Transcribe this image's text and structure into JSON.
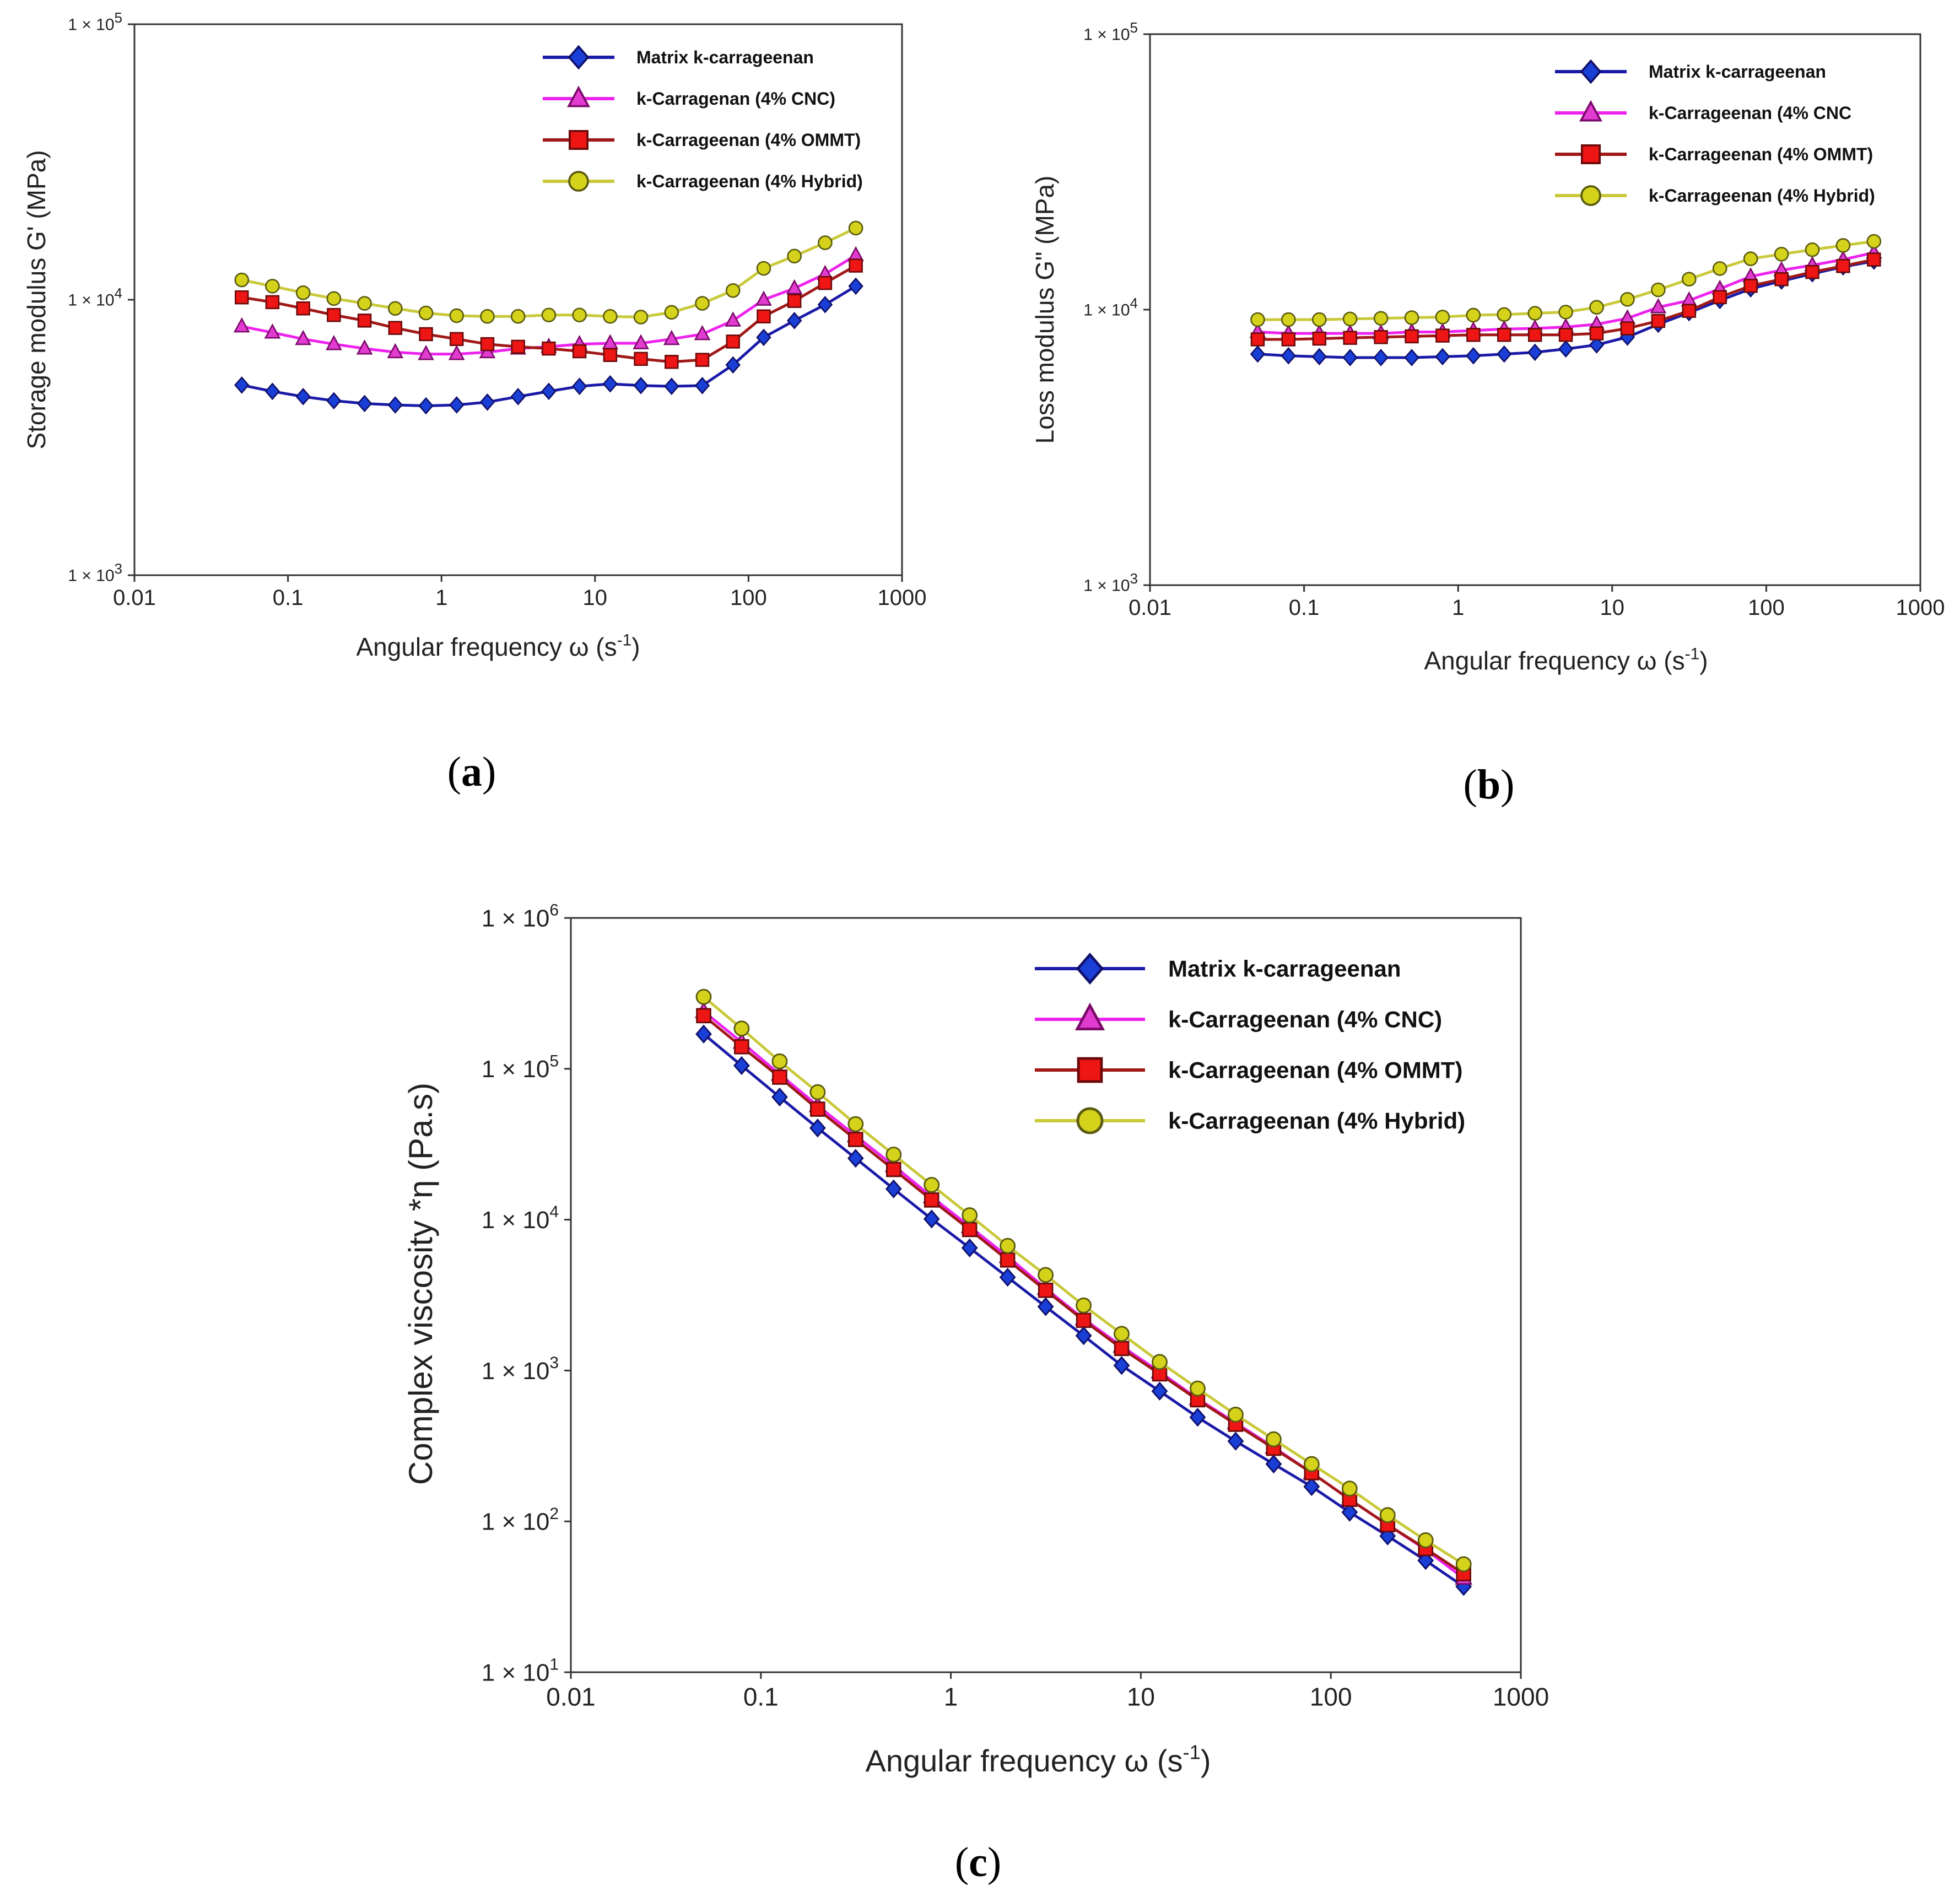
{
  "series_styles": [
    {
      "key": "matrix",
      "marker": "diamond",
      "line_color": "#1a1aa8",
      "fill": "#1a3fd6",
      "stroke": "#10106a"
    },
    {
      "key": "cnc",
      "marker": "triangle",
      "line_color": "#ee22ee",
      "fill": "#e23bd0",
      "stroke": "#7a0a6a"
    },
    {
      "key": "ommt",
      "marker": "square",
      "line_color": "#a01818",
      "fill": "#ee1515",
      "stroke": "#6a0a0a"
    },
    {
      "key": "hybrid",
      "marker": "circle",
      "line_color": "#c9c93a",
      "fill": "#d4d21a",
      "stroke": "#5a5a10"
    }
  ],
  "chart_data": [
    {
      "id": "a",
      "panel_label": "a",
      "type": "line",
      "xscale": "log",
      "yscale": "log",
      "xlim": [
        0.01,
        1000
      ],
      "ylim": [
        1000,
        100000
      ],
      "xticks": [
        "0.01",
        "0.1",
        "1",
        "10",
        "100",
        "1000"
      ],
      "yticks": [
        {
          "value": 1000,
          "mant": "1 × 10",
          "exp": "3"
        },
        {
          "value": 10000,
          "mant": "1 × 10",
          "exp": "4"
        },
        {
          "value": 100000,
          "mant": "1 × 10",
          "exp": "5"
        }
      ],
      "xlabel": "Angular frequency ω (s",
      "xlabel_sup": "-1",
      "xlabel_end": ")",
      "ylabel": "Storage modulus G' (MPa)",
      "legend_position": "top-right",
      "x": [
        0.05,
        0.0792,
        0.1256,
        0.199,
        0.3154,
        0.4999,
        0.7923,
        1.2557,
        1.9902,
        3.1543,
        4.9993,
        7.9234,
        12.558,
        19.903,
        31.544,
        49.994,
        79.235,
        125.58,
        199.03,
        315.44,
        499.94
      ],
      "series": [
        {
          "name": "Matrix k-carrageenan",
          "values": [
            4900,
            4650,
            4450,
            4300,
            4200,
            4150,
            4120,
            4150,
            4250,
            4450,
            4650,
            4850,
            4950,
            4880,
            4850,
            4880,
            5800,
            7300,
            8400,
            9600,
            11200
          ]
        },
        {
          "name": "k-Carragenan (4% CNC)",
          "values": [
            8000,
            7600,
            7200,
            6900,
            6650,
            6450,
            6350,
            6350,
            6450,
            6650,
            6750,
            6900,
            6950,
            6950,
            7200,
            7500,
            8400,
            10000,
            11000,
            12400,
            14500
          ]
        },
        {
          "name": "k-Carrageenan (4% OMMT)",
          "values": [
            10200,
            9800,
            9300,
            8800,
            8400,
            7900,
            7500,
            7200,
            6900,
            6750,
            6650,
            6500,
            6300,
            6100,
            5950,
            6050,
            7050,
            8700,
            9900,
            11500,
            13300
          ]
        },
        {
          "name": "k-Carrageenan (4% Hybrid)",
          "values": [
            11800,
            11200,
            10600,
            10100,
            9700,
            9300,
            8950,
            8750,
            8700,
            8700,
            8800,
            8800,
            8700,
            8650,
            9000,
            9700,
            10800,
            13000,
            14400,
            16100,
            18200
          ]
        }
      ]
    },
    {
      "id": "b",
      "panel_label": "b",
      "type": "line",
      "xscale": "log",
      "yscale": "log",
      "xlim": [
        0.01,
        1000
      ],
      "ylim": [
        1000,
        100000
      ],
      "xticks": [
        "0.01",
        "0.1",
        "1",
        "10",
        "100",
        "1000"
      ],
      "yticks": [
        {
          "value": 1000,
          "mant": "1 × 10",
          "exp": "3"
        },
        {
          "value": 10000,
          "mant": "1 × 10",
          "exp": "4"
        },
        {
          "value": 100000,
          "mant": "1 × 10",
          "exp": "5"
        }
      ],
      "xlabel": "Angular frequency ω (s",
      "xlabel_sup": "-1",
      "xlabel_end": ")",
      "ylabel": "Loss modulus G\" (MPa)",
      "legend_position": "top-right",
      "x": [
        0.05,
        0.0792,
        0.1256,
        0.199,
        0.3154,
        0.4999,
        0.7923,
        1.2557,
        1.9902,
        3.1543,
        4.9993,
        7.9234,
        12.558,
        19.903,
        31.544,
        49.994,
        79.235,
        125.58,
        199.03,
        315.44,
        499.94
      ],
      "series": [
        {
          "name": "Matrix k-carrageenan",
          "values": [
            6900,
            6800,
            6750,
            6700,
            6700,
            6700,
            6750,
            6800,
            6900,
            7000,
            7200,
            7450,
            7950,
            8850,
            9750,
            10800,
            11900,
            12700,
            13500,
            14300,
            15000
          ]
        },
        {
          "name": "k-Carrageenan (4% CNC",
          "values": [
            8300,
            8200,
            8200,
            8200,
            8200,
            8300,
            8300,
            8400,
            8500,
            8550,
            8650,
            8850,
            9300,
            10200,
            10800,
            11900,
            13200,
            13900,
            14500,
            15200,
            16100
          ]
        },
        {
          "name": "k-Carrageenan (4% OMMT)",
          "values": [
            7800,
            7800,
            7850,
            7900,
            7950,
            8000,
            8050,
            8100,
            8100,
            8100,
            8100,
            8200,
            8550,
            9100,
            9900,
            11100,
            12200,
            12900,
            13700,
            14400,
            15200
          ]
        },
        {
          "name": "k-Carrageenan (4% Hybrid)",
          "values": [
            9200,
            9200,
            9200,
            9250,
            9300,
            9350,
            9400,
            9550,
            9600,
            9700,
            9800,
            10200,
            10900,
            11800,
            12900,
            14100,
            15300,
            15900,
            16500,
            17100,
            17700
          ]
        }
      ]
    },
    {
      "id": "c",
      "panel_label": "c",
      "type": "line",
      "xscale": "log",
      "yscale": "log",
      "xlim": [
        0.01,
        1000
      ],
      "ylim": [
        10,
        1000000
      ],
      "xticks": [
        "0.01",
        "0.1",
        "1",
        "10",
        "100",
        "1000"
      ],
      "yticks": [
        {
          "value": 10,
          "mant": "1 × 10",
          "exp": "1"
        },
        {
          "value": 100,
          "mant": "1 × 10",
          "exp": "2"
        },
        {
          "value": 1000,
          "mant": "1 × 10",
          "exp": "3"
        },
        {
          "value": 10000,
          "mant": "1 × 10",
          "exp": "4"
        },
        {
          "value": 100000,
          "mant": "1 × 10",
          "exp": "5"
        },
        {
          "value": 1000000,
          "mant": "1 × 10",
          "exp": "6"
        }
      ],
      "xlabel": "Angular frequency ω (s",
      "xlabel_sup": "-1",
      "xlabel_end": ")",
      "ylabel": "Complex viscosity *η (Pa.s)",
      "legend_position": "top-right",
      "x": [
        0.05,
        0.0792,
        0.1256,
        0.199,
        0.3154,
        0.4999,
        0.7923,
        1.2557,
        1.9902,
        3.1543,
        4.9993,
        7.9234,
        12.558,
        19.903,
        31.544,
        49.994,
        79.235,
        125.58,
        199.03,
        315.44,
        499.94
      ],
      "series": [
        {
          "name": "Matrix k-carrageenan",
          "values": [
            170000,
            105000,
            65000,
            40500,
            25500,
            16000,
            10100,
            6500,
            4150,
            2650,
            1700,
            1080,
            730,
            490,
            340,
            240,
            170,
            115,
            80,
            55,
            37
          ]
        },
        {
          "name": "k-Carrageenan (4% CNC)",
          "values": [
            240000,
            150000,
            92000,
            57000,
            36000,
            22800,
            14200,
            9000,
            5700,
            3500,
            2200,
            1450,
            980,
            650,
            450,
            310,
            210,
            140,
            95,
            65,
            42
          ]
        },
        {
          "name": "k-Carrageenan (4% OMMT)",
          "values": [
            225000,
            140000,
            88000,
            54000,
            34000,
            21500,
            13500,
            8600,
            5400,
            3400,
            2150,
            1400,
            950,
            640,
            440,
            305,
            210,
            140,
            95,
            66,
            45
          ]
        },
        {
          "name": "k-Carrageenan (4% Hybrid)",
          "values": [
            300000,
            185000,
            112000,
            70000,
            43000,
            27000,
            17000,
            10700,
            6700,
            4300,
            2700,
            1750,
            1140,
            760,
            510,
            350,
            240,
            165,
            110,
            75,
            52
          ]
        }
      ]
    }
  ]
}
